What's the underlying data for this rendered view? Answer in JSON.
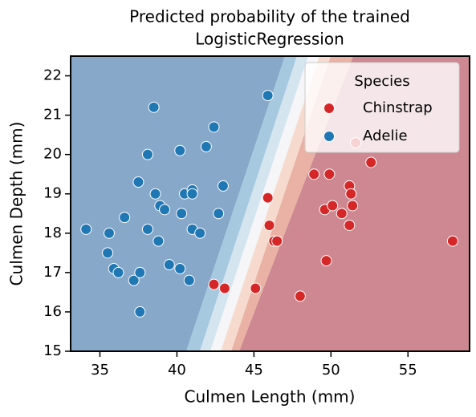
{
  "chart_data": {
    "type": "scatter",
    "title": [
      "Predicted probability of the trained",
      "LogisticRegression"
    ],
    "x_label": "Culmen Length (mm)",
    "y_label": "Culmen Depth (mm)",
    "xlim": [
      33.1,
      59.0
    ],
    "ylim": [
      15,
      22.5
    ],
    "xticks": [
      35,
      40,
      45,
      50,
      55
    ],
    "yticks": [
      15,
      16,
      17,
      18,
      19,
      20,
      21,
      22
    ],
    "legend": "upper right",
    "legend_title": "Species",
    "series": [
      {
        "name": "Chinstrap",
        "color": "#d62728",
        "x": [
          42.4,
          43.1,
          45.1,
          45.9,
          46.0,
          46.3,
          46.5,
          48.0,
          48.9,
          49.6,
          49.7,
          49.9,
          50.1,
          50.7,
          51.2,
          51.3,
          51.2,
          51.4,
          51.6,
          52.6,
          57.9
        ],
        "y": [
          16.7,
          16.6,
          16.6,
          18.9,
          18.2,
          17.8,
          17.8,
          16.4,
          19.5,
          18.6,
          17.3,
          19.5,
          18.7,
          18.5,
          19.2,
          19.0,
          18.2,
          18.7,
          20.3,
          19.8,
          17.8
        ]
      },
      {
        "name": "Adelie",
        "color": "#1f77b4",
        "x": [
          34.1,
          35.6,
          35.5,
          35.9,
          36.2,
          36.6,
          37.2,
          37.6,
          37.6,
          37.5,
          38.1,
          38.1,
          38.5,
          38.6,
          38.8,
          38.9,
          39.2,
          39.5,
          40.2,
          40.2,
          40.3,
          40.5,
          40.8,
          41.0,
          41.0,
          41.0,
          41.5,
          41.9,
          42.4,
          42.7,
          43.0,
          45.9
        ],
        "y": [
          18.1,
          18.0,
          17.5,
          17.1,
          17.0,
          18.4,
          16.8,
          17.0,
          16.0,
          19.3,
          20.0,
          18.1,
          21.2,
          19.0,
          17.8,
          18.7,
          18.6,
          17.2,
          17.1,
          20.1,
          18.5,
          19.0,
          16.8,
          19.1,
          19.0,
          18.1,
          18.0,
          20.2,
          20.7,
          18.5,
          19.2,
          21.5
        ]
      }
    ]
  }
}
